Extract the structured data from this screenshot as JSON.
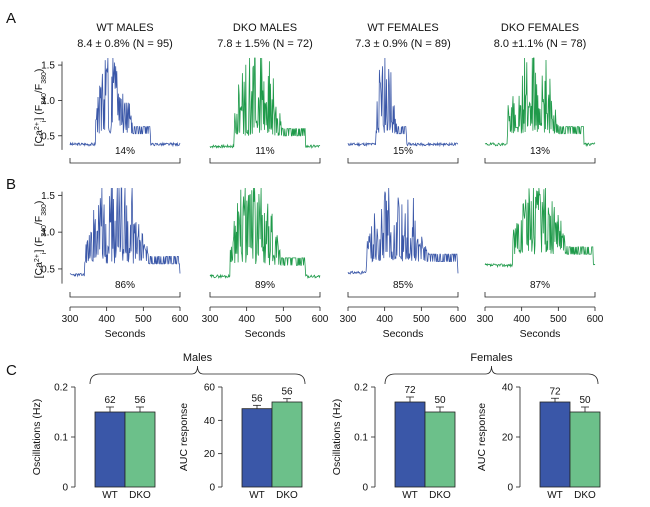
{
  "figure": {
    "panel_letters": [
      "A",
      "B",
      "C"
    ],
    "sub": {
      "ca": "2+",
      "i": "i",
      "f340": "340",
      "f380": "380"
    },
    "trace_ylabel": {
      "open": "[Ca",
      "mid": "] (F",
      "slash": "/F",
      "close": ")"
    },
    "traces_xlabel": "Seconds",
    "traces_xticks": [
      "300",
      "400",
      "500",
      "600"
    ],
    "traces_yticks": [
      "0.5",
      "1.0",
      "1.5"
    ],
    "colors": {
      "wt": "#3a57a8",
      "dko": "#1f9a4a",
      "wt_bar": "#3a57a8",
      "dko_bar": "#6cc08a"
    }
  },
  "chart_data": [
    {
      "type": "line",
      "panel": "A",
      "groups": [
        {
          "title": "WT MALES",
          "stat": "8.4 ± 0.8% (N = 95)",
          "percent": "14%",
          "color": "wt",
          "shape": {
            "start": 370,
            "end": 520,
            "peak": 1.5,
            "mid": 0.85,
            "base": 0.38,
            "seed": 3
          }
        },
        {
          "title": "DKO MALES",
          "stat": "7.8 ±  1.5% (N = 72)",
          "percent": "11%",
          "color": "dko",
          "shape": {
            "start": 365,
            "end": 560,
            "peak": 1.6,
            "mid": 0.75,
            "base": 0.35,
            "seed": 7
          }
        },
        {
          "title": "WT FEMALES",
          "stat": "7.3 ± 0.9% (N = 89)",
          "percent": "15%",
          "color": "wt",
          "shape": {
            "start": 375,
            "end": 460,
            "peak": 1.5,
            "mid": 0.95,
            "base": 0.38,
            "seed": 11
          }
        },
        {
          "title": "DKO FEMALES",
          "stat": "8.0 ±1.1% (N = 78)",
          "percent": "13%",
          "color": "dko",
          "shape": {
            "start": 360,
            "end": 570,
            "peak": 1.55,
            "mid": 0.65,
            "base": 0.38,
            "seed": 19
          }
        }
      ],
      "x_range": [
        300,
        600
      ],
      "y_range": [
        0.2,
        1.6
      ]
    },
    {
      "type": "line",
      "panel": "B",
      "groups": [
        {
          "percent": "86%",
          "color": "wt",
          "shape": {
            "start": 340,
            "end": 600,
            "peak": 1.6,
            "mid": 0.9,
            "base": 0.42,
            "seed": 23
          }
        },
        {
          "percent": "89%",
          "color": "dko",
          "shape": {
            "start": 355,
            "end": 560,
            "peak": 1.6,
            "mid": 1.05,
            "base": 0.4,
            "seed": 29
          }
        },
        {
          "percent": "85%",
          "color": "wt",
          "shape": {
            "start": 350,
            "end": 600,
            "peak": 1.4,
            "mid": 0.7,
            "base": 0.45,
            "seed": 31
          }
        },
        {
          "percent": "87%",
          "color": "dko",
          "shape": {
            "start": 375,
            "end": 595,
            "peak": 1.5,
            "mid": 1.05,
            "base": 0.55,
            "seed": 37
          }
        }
      ],
      "x_range": [
        300,
        600
      ],
      "y_range": [
        0.2,
        1.6
      ]
    },
    {
      "type": "bar",
      "panel": "C",
      "section_labels": [
        "Males",
        "Females"
      ],
      "categories": [
        "WT",
        "DKO"
      ],
      "plots": [
        {
          "ylabel": "Oscillations (Hz)",
          "yticks": [
            "0",
            "0.1",
            "0.2"
          ],
          "ylim": [
            0,
            0.2
          ],
          "values": [
            0.15,
            0.15
          ],
          "errors": [
            0.01,
            0.01
          ],
          "n": [
            "62",
            "56"
          ]
        },
        {
          "ylabel": "AUC response",
          "yticks": [
            "0",
            "20",
            "40",
            "60"
          ],
          "ylim": [
            0,
            60
          ],
          "values": [
            47,
            51
          ],
          "errors": [
            2,
            2
          ],
          "n": [
            "56",
            "56"
          ]
        },
        {
          "ylabel": "Oscillations (Hz)",
          "yticks": [
            "0",
            "0.1",
            "0.2"
          ],
          "ylim": [
            0,
            0.2
          ],
          "values": [
            0.17,
            0.15
          ],
          "errors": [
            0.01,
            0.01
          ],
          "n": [
            "72",
            "50"
          ]
        },
        {
          "ylabel": "AUC response",
          "yticks": [
            "0",
            "20",
            "40"
          ],
          "ylim": [
            0,
            40
          ],
          "values": [
            34,
            30
          ],
          "errors": [
            1.5,
            2
          ],
          "n": [
            "72",
            "50"
          ]
        }
      ]
    }
  ]
}
